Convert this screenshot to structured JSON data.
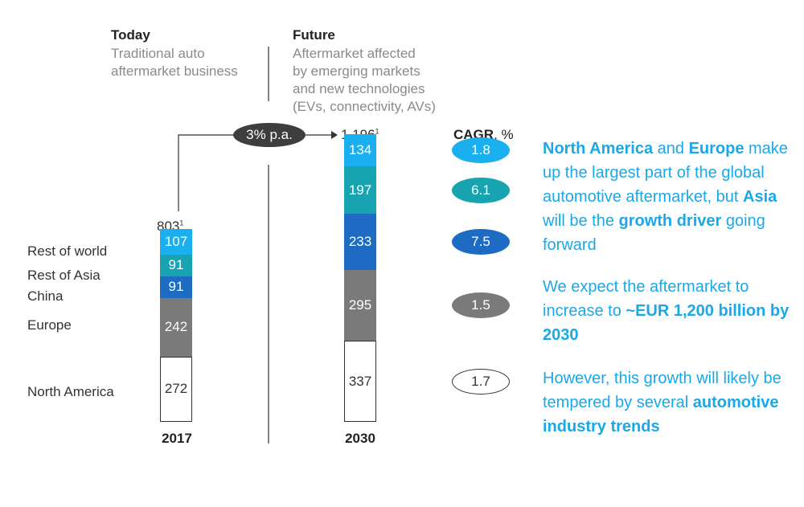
{
  "header": {
    "today_title": "Today",
    "today_sub": [
      "Traditional auto",
      "aftermarket business"
    ],
    "future_title": "Future",
    "future_sub": [
      "Aftermarket affected",
      "by emerging markets",
      "and new technologies",
      "(EVs, connectivity, AVs)"
    ]
  },
  "growth_label": "3% p.a.",
  "cagr_header": {
    "bold": "CAGR",
    "rest": ", %"
  },
  "colors": {
    "rest_of_world": "#1ab0ef",
    "rest_of_asia": "#17a3b0",
    "china": "#1e6bc4",
    "europe": "#7a7a7a",
    "north_america": "#ffffff",
    "text_accent": "#1aa8e8"
  },
  "chart_data": {
    "type": "bar",
    "stacked": true,
    "categories": [
      "2017",
      "2030"
    ],
    "totals": [
      "803",
      "1,196"
    ],
    "total_footnote": "1",
    "series": [
      {
        "name": "North America",
        "values": [
          272,
          337
        ],
        "cagr": "1.7"
      },
      {
        "name": "Europe",
        "values": [
          242,
          295
        ],
        "cagr": "1.5"
      },
      {
        "name": "China",
        "values": [
          91,
          233
        ],
        "cagr": "7.5"
      },
      {
        "name": "Rest of Asia",
        "values": [
          91,
          197
        ],
        "cagr": "6.1"
      },
      {
        "name": "Rest of world",
        "values": [
          107,
          134
        ],
        "cagr": "1.8"
      }
    ]
  },
  "paragraphs": [
    [
      {
        "t": "North America",
        "b": true
      },
      {
        "t": " and ",
        "b": false
      },
      {
        "t": "Europe",
        "b": true
      },
      {
        "t": " make up the largest part of the global automotive aftermarket, but ",
        "b": false
      },
      {
        "t": "Asia",
        "b": true
      },
      {
        "t": " will be the ",
        "b": false
      },
      {
        "t": "growth driver",
        "b": true
      },
      {
        "t": " going forward",
        "b": false
      }
    ],
    [
      {
        "t": "We expect the aftermarket to increase to ",
        "b": false
      },
      {
        "t": "~EUR 1,200 billion by 2030",
        "b": true
      }
    ],
    [
      {
        "t": "However, this growth will likely be tempered by several ",
        "b": false
      },
      {
        "t": "automotive industry trends",
        "b": true
      }
    ]
  ]
}
